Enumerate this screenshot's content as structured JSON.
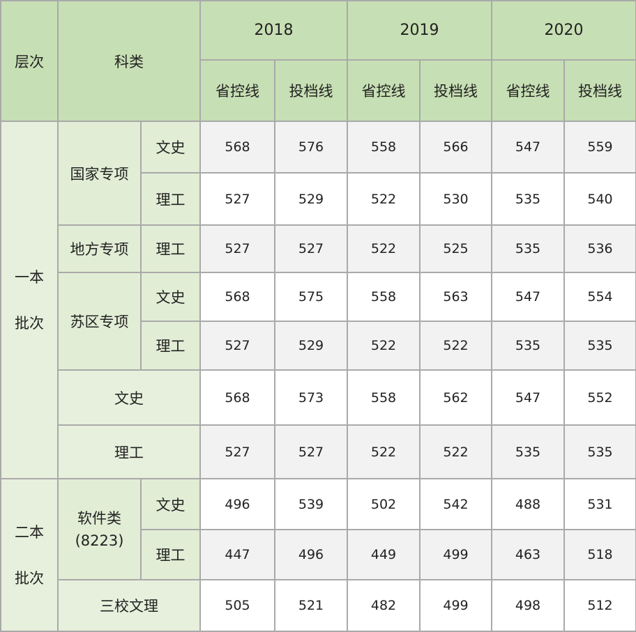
{
  "header": {
    "level": "层次",
    "category": "科类",
    "years": [
      "2018",
      "2019",
      "2020"
    ],
    "subcols": [
      "省控线",
      "投档线",
      "省控线",
      "投档线",
      "省控线",
      "投档线"
    ]
  },
  "levels": {
    "yiben": [
      "一本",
      "批次"
    ],
    "erben": [
      "二本",
      "批次"
    ]
  },
  "groups": {
    "guojia": "国家专项",
    "difang": "地方专项",
    "suqu": "苏区专项",
    "ruanjian": [
      "软件类",
      "(8223)"
    ]
  },
  "rows": [
    {
      "track": "文史",
      "values": [
        "568",
        "576",
        "558",
        "566",
        "547",
        "559"
      ]
    },
    {
      "track": "理工",
      "values": [
        "527",
        "529",
        "522",
        "530",
        "535",
        "540"
      ]
    },
    {
      "track": "理工",
      "values": [
        "527",
        "527",
        "522",
        "525",
        "535",
        "536"
      ]
    },
    {
      "track": "文史",
      "values": [
        "568",
        "575",
        "558",
        "563",
        "547",
        "554"
      ]
    },
    {
      "track": "理工",
      "values": [
        "527",
        "529",
        "522",
        "522",
        "535",
        "535"
      ]
    },
    {
      "track": "文史",
      "values": [
        "568",
        "573",
        "558",
        "562",
        "547",
        "552"
      ]
    },
    {
      "track": "理工",
      "values": [
        "527",
        "527",
        "522",
        "522",
        "535",
        "535"
      ]
    },
    {
      "track": "文史",
      "values": [
        "496",
        "539",
        "502",
        "542",
        "488",
        "531"
      ]
    },
    {
      "track": "理工",
      "values": [
        "447",
        "496",
        "449",
        "499",
        "463",
        "518"
      ]
    },
    {
      "track": "三校文理",
      "values": [
        "505",
        "521",
        "482",
        "499",
        "498",
        "512"
      ]
    }
  ]
}
